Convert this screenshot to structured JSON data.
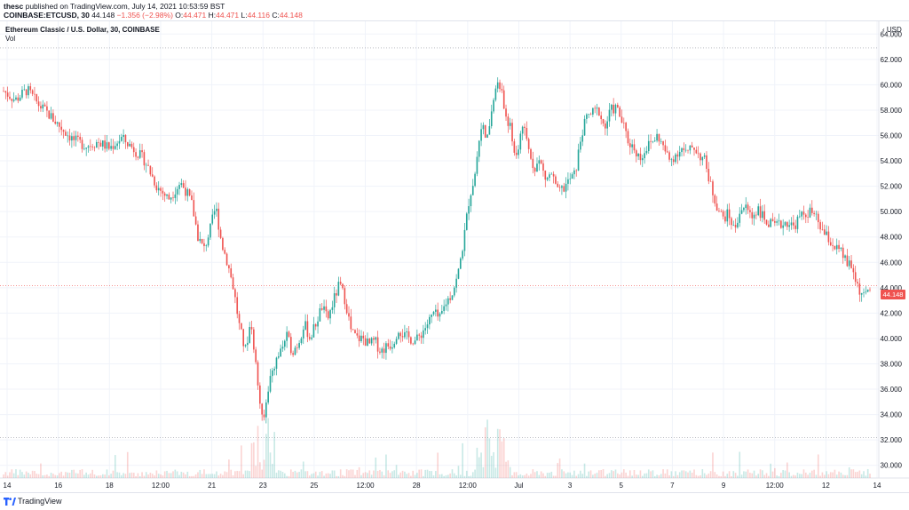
{
  "header": {
    "publisher": "thesc",
    "published_text": "published on TradingView.com, July 14, 2021 10:53:59 BST",
    "symbol": "COINBASE:ETCUSD, 30",
    "last": "44.148",
    "change": "−1.356 (−2.98%)",
    "open_label": "O:",
    "open": "44.471",
    "high_label": "H:",
    "high": "44.471",
    "low_label": "L:",
    "low": "44.116",
    "close_label": "C:",
    "close": "44.148"
  },
  "legend": {
    "title": "Ethereum Classic / U.S. Dollar, 30, COINBASE",
    "volume": "Vol"
  },
  "price_axis": {
    "currency": "USD",
    "current_price_tag": "44.148"
  },
  "footer": {
    "brand": "TradingView"
  },
  "colors": {
    "up": "#26a69a",
    "down": "#ef5350",
    "grid": "#f0f3fa",
    "text": "#131722"
  },
  "chart_data": {
    "type": "candlestick",
    "title": "Ethereum Classic / U.S. Dollar, 30, COINBASE",
    "ylim": [
      29,
      65
    ],
    "y_ticks": [
      30,
      32,
      34,
      36,
      38,
      40,
      42,
      44,
      46,
      48,
      50,
      52,
      54,
      56,
      58,
      60,
      62,
      64
    ],
    "x_tick_labels": [
      "14",
      "16",
      "18",
      "12:00",
      "21",
      "23",
      "25",
      "12:00",
      "28",
      "12:00",
      "Jul",
      "3",
      "5",
      "7",
      "9",
      "12:00",
      "12",
      "14"
    ],
    "dotted_levels": [
      62.9,
      32.2
    ],
    "current_price": 44.148,
    "price_path": [
      [
        0,
        59.5
      ],
      [
        2,
        58.8
      ],
      [
        4,
        59.6
      ],
      [
        6,
        58.4
      ],
      [
        8,
        57.5
      ],
      [
        10,
        56.5
      ],
      [
        12,
        55.6
      ],
      [
        14,
        55.2
      ],
      [
        16,
        55.5
      ],
      [
        18,
        55.0
      ],
      [
        20,
        55.8
      ],
      [
        22,
        55.0
      ],
      [
        24,
        54.0
      ],
      [
        26,
        52.0
      ],
      [
        28,
        51.0
      ],
      [
        30,
        52.3
      ],
      [
        31,
        51.6
      ],
      [
        32,
        50.5
      ],
      [
        33,
        48.0
      ],
      [
        34,
        47.0
      ],
      [
        35,
        48.5
      ],
      [
        36,
        50.4
      ],
      [
        37,
        47.5
      ],
      [
        38,
        46.0
      ],
      [
        39,
        44.0
      ],
      [
        40,
        41.0
      ],
      [
        41,
        39.0
      ],
      [
        42,
        41.5
      ],
      [
        43,
        37.0
      ],
      [
        44,
        33.0
      ],
      [
        45,
        36.5
      ],
      [
        46,
        38.0
      ],
      [
        47,
        39.0
      ],
      [
        48,
        40.2
      ],
      [
        49,
        39.0
      ],
      [
        50,
        39.6
      ],
      [
        51,
        41.2
      ],
      [
        52,
        40.0
      ],
      [
        53,
        41.2
      ],
      [
        54,
        42.5
      ],
      [
        55,
        41.5
      ],
      [
        56,
        43.0
      ],
      [
        57,
        44.3
      ],
      [
        58,
        43.0
      ],
      [
        59,
        40.5
      ],
      [
        60,
        40.0
      ],
      [
        61,
        40.0
      ],
      [
        62,
        39.5
      ],
      [
        63,
        39.8
      ],
      [
        64,
        39.0
      ],
      [
        65,
        39.4
      ],
      [
        66,
        39.6
      ],
      [
        67,
        40.8
      ],
      [
        68,
        40.2
      ],
      [
        69,
        40.0
      ],
      [
        70,
        39.8
      ],
      [
        71,
        40.5
      ],
      [
        72,
        41.2
      ],
      [
        73,
        42.0
      ],
      [
        74,
        41.5
      ],
      [
        75,
        42.8
      ],
      [
        76,
        43.5
      ],
      [
        77,
        44.8
      ],
      [
        78,
        47.5
      ],
      [
        79,
        51.0
      ],
      [
        80,
        53.0
      ],
      [
        81,
        57.0
      ],
      [
        82,
        55.5
      ],
      [
        83,
        58.5
      ],
      [
        84,
        60.5
      ],
      [
        85,
        58.0
      ],
      [
        86,
        56.5
      ],
      [
        87,
        54.0
      ],
      [
        88,
        57.0
      ],
      [
        89,
        55.0
      ],
      [
        90,
        53.5
      ],
      [
        91,
        54.0
      ],
      [
        92,
        52.5
      ],
      [
        93,
        53.0
      ],
      [
        94,
        51.5
      ],
      [
        95,
        51.8
      ],
      [
        96,
        52.5
      ],
      [
        97,
        53.0
      ],
      [
        98,
        56.0
      ],
      [
        99,
        57.5
      ],
      [
        100,
        57.8
      ],
      [
        101,
        58.0
      ],
      [
        102,
        56.5
      ],
      [
        103,
        58.0
      ],
      [
        104,
        58.2
      ],
      [
        105,
        57.0
      ],
      [
        106,
        55.5
      ],
      [
        107,
        55.0
      ],
      [
        108,
        54.2
      ],
      [
        109,
        55.0
      ],
      [
        110,
        55.5
      ],
      [
        111,
        56.0
      ],
      [
        112,
        55.0
      ],
      [
        113,
        54.0
      ],
      [
        114,
        54.5
      ],
      [
        115,
        55.0
      ],
      [
        116,
        54.5
      ],
      [
        117,
        55.2
      ],
      [
        118,
        54.5
      ],
      [
        119,
        54.0
      ],
      [
        120,
        52.0
      ],
      [
        121,
        50.5
      ],
      [
        122,
        49.5
      ],
      [
        123,
        49.8
      ],
      [
        124,
        48.5
      ],
      [
        125,
        50.2
      ],
      [
        126,
        50.3
      ],
      [
        127,
        49.6
      ],
      [
        128,
        50.3
      ],
      [
        129,
        49.4
      ],
      [
        130,
        49.0
      ],
      [
        131,
        48.8
      ],
      [
        132,
        49.0
      ],
      [
        133,
        49.2
      ],
      [
        134,
        48.8
      ],
      [
        135,
        49.5
      ],
      [
        136,
        49.8
      ],
      [
        137,
        50.0
      ],
      [
        138,
        49.3
      ],
      [
        139,
        48.4
      ],
      [
        140,
        47.8
      ],
      [
        141,
        47.2
      ],
      [
        142,
        46.8
      ],
      [
        143,
        46.0
      ],
      [
        144,
        45.5
      ],
      [
        145,
        44.0
      ],
      [
        146,
        43.2
      ],
      [
        147,
        44.1
      ]
    ]
  }
}
